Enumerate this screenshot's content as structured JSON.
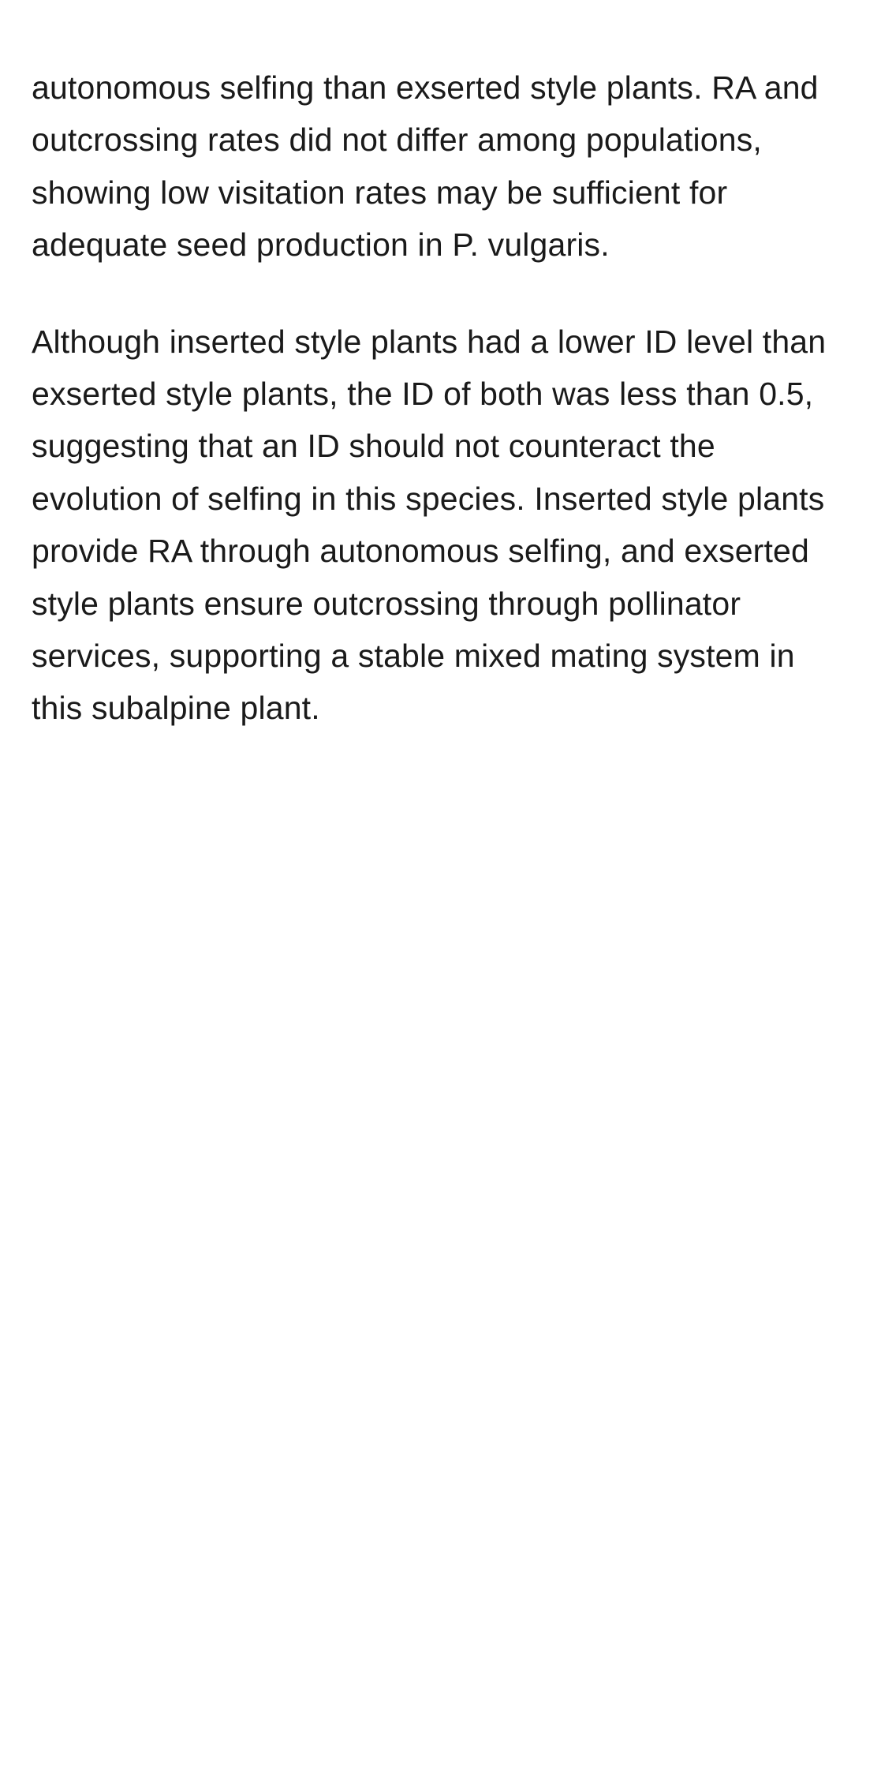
{
  "paragraphs": [
    "autonomous selfing than exserted style plants. RA and outcrossing rates did not differ among populations, showing low visitation rates may be sufficient for adequate seed production in P. vulgaris.",
    "Although inserted style plants had a lower ID level than exserted style plants, the ID of both was less than 0.5, suggesting that an ID should not counteract the evolution of selfing in this species. Inserted style plants provide RA through autonomous selfing, and exserted style plants ensure outcrossing through pollinator services, supporting a stable mixed mating system in this subalpine plant."
  ],
  "styles": {
    "background_color": "#ffffff",
    "text_color": "#1a1a1a",
    "font_size": 41,
    "line_height": 1.62,
    "paragraph_spacing": 56
  }
}
